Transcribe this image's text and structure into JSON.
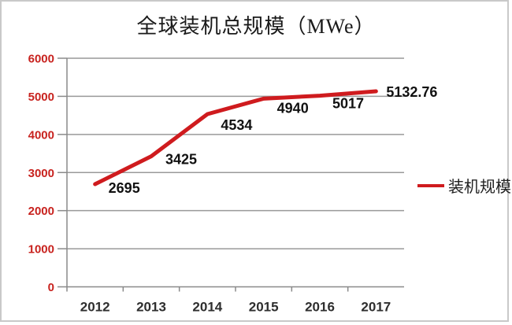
{
  "title": "全球装机总规模（MWe）",
  "legend": {
    "label": "装机规模"
  },
  "chart_data": {
    "type": "line",
    "title": "全球装机总规模（MWe）",
    "categories": [
      "2012",
      "2013",
      "2014",
      "2015",
      "2016",
      "2017"
    ],
    "series": [
      {
        "name": "装机规模",
        "values": [
          2695,
          3425,
          4534,
          4940,
          5017,
          5132.76
        ]
      }
    ],
    "data_labels": [
      "2695",
      "3425",
      "4534",
      "4940",
      "5017",
      "5132.76"
    ],
    "xlabel": "",
    "ylabel": "",
    "ylim": [
      0,
      6000
    ],
    "ytick_step": 1000,
    "ytick_labels": [
      "0",
      "1000",
      "2000",
      "3000",
      "4000",
      "5000",
      "6000"
    ],
    "grid": true,
    "legend_position": "right",
    "colors": {
      "line": "#cf1b1e",
      "ytick_label": "#c8231f",
      "grid": "#999999",
      "axis": "#8a8a8a",
      "data_label": "#111111",
      "xtick_label": "#2e2e2e",
      "title": "#1a1a1a",
      "border": "#c9c9c9",
      "background": "#ffffff"
    }
  }
}
